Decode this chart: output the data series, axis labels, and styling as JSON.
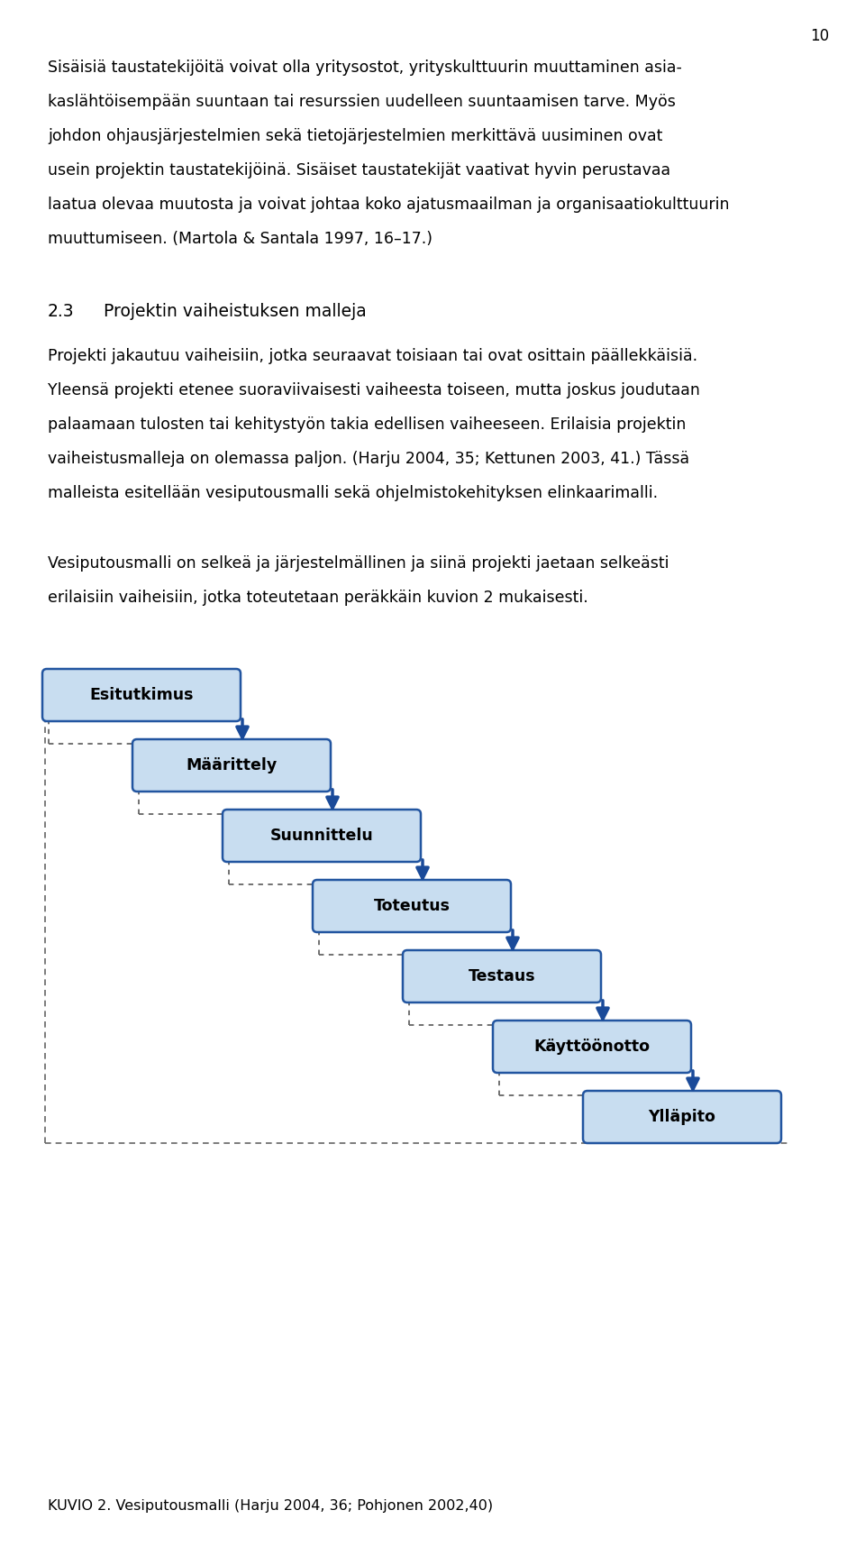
{
  "page_number": "10",
  "bg_color": "#ffffff",
  "text_color": "#000000",
  "steps": [
    "Esitutkimus",
    "Määrittely",
    "Suunnittelu",
    "Toteutus",
    "Testaus",
    "Käyttöönotto",
    "Ylläpito"
  ],
  "box_fill": "#c8ddf0",
  "box_edge": "#2255a0",
  "arrow_color": "#1a4a99",
  "dashed_color": "#666666",
  "caption": "KUVIO 2. Vesiputousmalli (Harju 2004, 36; Pohjonen 2002,40)",
  "font_size_body": 12.5,
  "font_size_heading": 13.5,
  "font_size_caption": 11.5,
  "font_size_box": 12.5,
  "font_size_page": 12
}
